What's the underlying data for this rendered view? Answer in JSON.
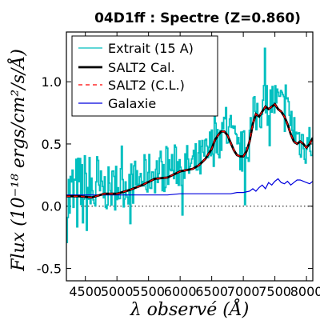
{
  "chart_data": {
    "type": "line",
    "title": "04D1ff : Spectre (Z=0.860)",
    "xlabel": "λ observé (Å)",
    "ylabel": "Flux (10⁻¹⁸ ergs/cm²/s/Å)",
    "xlim": [
      4200,
      8100
    ],
    "ylim": [
      -0.6,
      1.4
    ],
    "xticks": [
      4500,
      5000,
      5500,
      6000,
      6500,
      7000,
      7500,
      8000
    ],
    "yticks": [
      -0.5,
      0.0,
      0.5,
      1.0
    ],
    "xtick_labels": [
      "4500",
      "5000",
      "5500",
      "6000",
      "6500",
      "7000",
      "7500",
      "8000"
    ],
    "ytick_labels": [
      "-0.5",
      "0.0",
      "0.5",
      "1.0"
    ],
    "zero_line": "dotted",
    "legend_position": "top-left",
    "series": [
      {
        "name": "Extrait (15 A)",
        "color": "#00bfbf",
        "style": "step",
        "sample_every_A": 15,
        "anchors_x": [
          4200,
          4400,
          4700,
          5000,
          5300,
          5600,
          5900,
          6200,
          6400,
          6550,
          6700,
          6800,
          6900,
          7050,
          7150,
          7300,
          7450,
          7550,
          7700,
          7850,
          8000,
          8100
        ],
        "anchors_y": [
          0.05,
          0.1,
          0.12,
          0.15,
          0.2,
          0.28,
          0.32,
          0.32,
          0.4,
          0.52,
          0.62,
          0.58,
          0.42,
          0.45,
          0.7,
          0.8,
          0.85,
          0.82,
          0.74,
          0.55,
          0.5,
          0.52
        ],
        "noise": 0.18
      },
      {
        "name": "SALT2 Cal.",
        "color": "#000000",
        "x": [
          4200,
          4400,
          4600,
          4800,
          5000,
          5200,
          5400,
          5600,
          5800,
          6000,
          6200,
          6300,
          6400,
          6500,
          6550,
          6600,
          6650,
          6700,
          6750,
          6800,
          6850,
          6900,
          6950,
          7000,
          7050,
          7100,
          7150,
          7200,
          7250,
          7300,
          7350,
          7400,
          7450,
          7500,
          7550,
          7600,
          7650,
          7700,
          7750,
          7800,
          7850,
          7900,
          7950,
          8000,
          8050,
          8100
        ],
        "y": [
          0.08,
          0.08,
          0.07,
          0.1,
          0.1,
          0.13,
          0.17,
          0.22,
          0.23,
          0.28,
          0.3,
          0.33,
          0.38,
          0.46,
          0.53,
          0.57,
          0.6,
          0.6,
          0.57,
          0.51,
          0.45,
          0.41,
          0.4,
          0.4,
          0.44,
          0.52,
          0.66,
          0.74,
          0.72,
          0.76,
          0.8,
          0.78,
          0.8,
          0.82,
          0.78,
          0.76,
          0.72,
          0.66,
          0.58,
          0.52,
          0.5,
          0.52,
          0.5,
          0.47,
          0.5,
          0.55
        ]
      },
      {
        "name": "SALT2 (C.L.)",
        "color": "#ff0000",
        "style": "dashed",
        "x": [
          4200,
          4400,
          4600,
          4800,
          5000,
          5200,
          5400,
          5600,
          5800,
          6000,
          6200,
          6300,
          6400,
          6500,
          6550,
          6600,
          6650,
          6700,
          6750,
          6800,
          6850,
          6900,
          6950,
          7000,
          7050,
          7100,
          7150,
          7200,
          7250,
          7300,
          7350,
          7400,
          7450,
          7500,
          7550,
          7600,
          7650,
          7700,
          7750,
          7800,
          7850,
          7900,
          7950,
          8000,
          8050,
          8100
        ],
        "y": [
          0.08,
          0.08,
          0.07,
          0.1,
          0.1,
          0.13,
          0.17,
          0.22,
          0.23,
          0.28,
          0.3,
          0.33,
          0.38,
          0.46,
          0.53,
          0.57,
          0.6,
          0.6,
          0.57,
          0.51,
          0.45,
          0.41,
          0.4,
          0.4,
          0.44,
          0.52,
          0.66,
          0.74,
          0.72,
          0.76,
          0.8,
          0.78,
          0.8,
          0.82,
          0.78,
          0.76,
          0.72,
          0.66,
          0.58,
          0.52,
          0.5,
          0.52,
          0.5,
          0.47,
          0.5,
          0.55
        ]
      },
      {
        "name": "Galaxie",
        "color": "#0000dd",
        "x": [
          4200,
          4400,
          4600,
          4800,
          5000,
          5200,
          5400,
          5600,
          5800,
          6000,
          6200,
          6400,
          6600,
          6800,
          6900,
          7000,
          7100,
          7150,
          7200,
          7250,
          7300,
          7350,
          7400,
          7450,
          7500,
          7550,
          7600,
          7650,
          7700,
          7750,
          7800,
          7850,
          7900,
          7950,
          8000,
          8050,
          8100
        ],
        "y": [
          0.09,
          0.09,
          0.09,
          0.09,
          0.09,
          0.09,
          0.09,
          0.09,
          0.09,
          0.1,
          0.1,
          0.1,
          0.1,
          0.1,
          0.11,
          0.11,
          0.12,
          0.14,
          0.12,
          0.15,
          0.17,
          0.14,
          0.19,
          0.17,
          0.2,
          0.22,
          0.19,
          0.18,
          0.2,
          0.17,
          0.19,
          0.21,
          0.21,
          0.2,
          0.19,
          0.18,
          0.2
        ]
      }
    ]
  }
}
